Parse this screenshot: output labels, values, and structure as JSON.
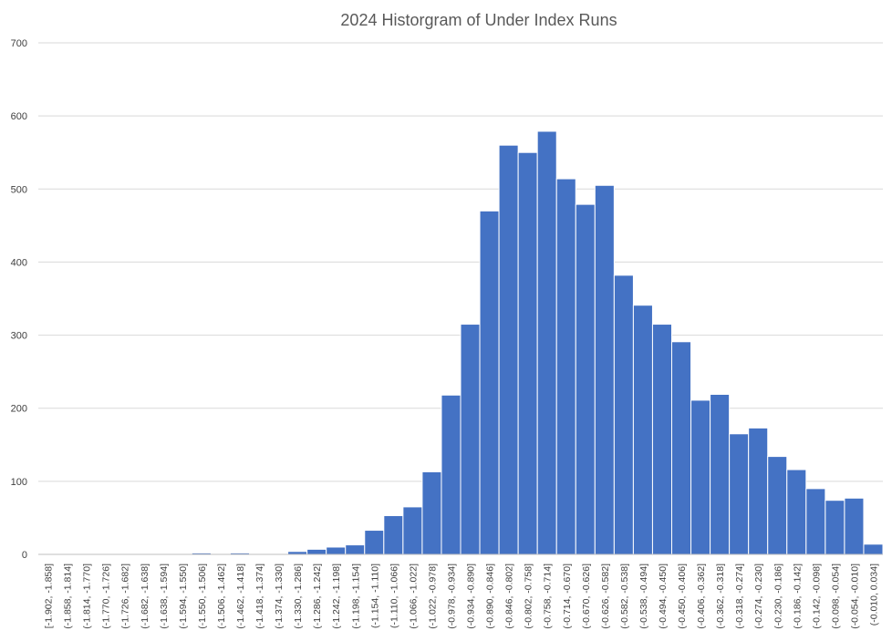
{
  "chart_data": {
    "type": "bar",
    "title": "2024 Historgram of Under Index Runs",
    "xlabel": "",
    "ylabel": "",
    "ylim": [
      0,
      700
    ],
    "yticks": [
      0,
      100,
      200,
      300,
      400,
      500,
      600,
      700
    ],
    "grid": true,
    "legend": "none",
    "bar_color": "#4472c4",
    "categories": [
      "[-1.902, -1.858]",
      "(-1.858, -1.814]",
      "(-1.814, -1.770]",
      "(-1.770, -1.726]",
      "(-1.726, -1.682]",
      "(-1.682, -1.638]",
      "(-1.638, -1.594]",
      "(-1.594, -1.550]",
      "(-1.550, -1.506]",
      "(-1.506, -1.462]",
      "(-1.462, -1.418]",
      "(-1.418, -1.374]",
      "(-1.374, -1.330]",
      "(-1.330, -1.286]",
      "(-1.286, -1.242]",
      "(-1.242, -1.198]",
      "(-1.198, -1.154]",
      "(-1.154, -1.110]",
      "(-1.110, -1.066]",
      "(-1.066, -1.022]",
      "(-1.022, -0.978]",
      "(-0.978, -0.934]",
      "(-0.934, -0.890]",
      "(-0.890, -0.846]",
      "(-0.846, -0.802]",
      "(-0.802, -0.758]",
      "(-0.758, -0.714]",
      "(-0.714, -0.670]",
      "(-0.670, -0.626]",
      "(-0.626, -0.582]",
      "(-0.582, -0.538]",
      "(-0.538, -0.494]",
      "(-0.494, -0.450]",
      "(-0.450, -0.406]",
      "(-0.406, -0.362]",
      "(-0.362, -0.318]",
      "(-0.318, -0.274]",
      "(-0.274, -0.230]",
      "(-0.230, -0.186]",
      "(-0.186, -0.142]",
      "(-0.142, -0.098]",
      "(-0.098, -0.054]",
      "(-0.054, -0.010]",
      "(-0.010, 0.034]"
    ],
    "values": [
      0,
      0,
      0,
      0,
      0,
      0,
      0,
      0,
      2,
      0,
      2,
      0,
      0,
      4,
      7,
      10,
      13,
      33,
      53,
      65,
      113,
      218,
      315,
      470,
      560,
      550,
      579,
      514,
      479,
      505,
      382,
      341,
      315,
      291,
      211,
      219,
      165,
      173,
      134,
      116,
      90,
      74,
      77,
      14
    ]
  }
}
